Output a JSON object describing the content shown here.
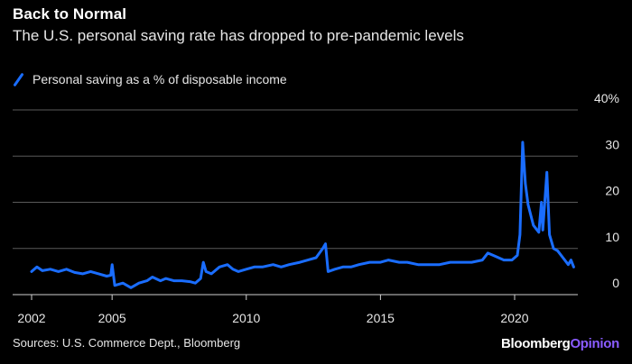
{
  "header": {
    "title": "Back to Normal",
    "subtitle": "The U.S. personal saving rate has dropped to pre-pandemic levels"
  },
  "footer": {
    "source": "Sources: U.S. Commerce Dept., Bloomberg",
    "brand_part1": "Bloomberg",
    "brand_part2": "Opinion"
  },
  "colors": {
    "series": "#1a6dff",
    "grid": "#5a5a5a",
    "brand_accent": "#8a5cff"
  },
  "chart_data": {
    "type": "line",
    "title": "Back to Normal",
    "subtitle": "The U.S. personal saving rate has dropped to pre-pandemic levels",
    "xlabel": "",
    "ylabel": "",
    "xlim": [
      2002,
      2022.3
    ],
    "ylim": [
      0,
      40
    ],
    "x_ticks": [
      2002,
      2005,
      2010,
      2015,
      2020
    ],
    "y_ticks": [
      0,
      10,
      20,
      30,
      40
    ],
    "y_tick_labels": [
      "0",
      "10",
      "20",
      "30",
      "40%"
    ],
    "grid": "horizontal",
    "legend": "top-left",
    "series": [
      {
        "name": "Personal saving as a % of disposable income",
        "points": [
          [
            2002.0,
            5.0
          ],
          [
            2002.2,
            6.0
          ],
          [
            2002.4,
            5.2
          ],
          [
            2002.7,
            5.5
          ],
          [
            2003.0,
            5.0
          ],
          [
            2003.3,
            5.5
          ],
          [
            2003.6,
            4.8
          ],
          [
            2003.9,
            4.5
          ],
          [
            2004.2,
            5.0
          ],
          [
            2004.5,
            4.5
          ],
          [
            2004.8,
            4.0
          ],
          [
            2004.95,
            4.2
          ],
          [
            2005.0,
            6.5
          ],
          [
            2005.1,
            2.0
          ],
          [
            2005.4,
            2.5
          ],
          [
            2005.7,
            1.5
          ],
          [
            2006.0,
            2.5
          ],
          [
            2006.3,
            3.0
          ],
          [
            2006.5,
            3.8
          ],
          [
            2006.8,
            3.0
          ],
          [
            2007.0,
            3.5
          ],
          [
            2007.3,
            3.0
          ],
          [
            2007.6,
            3.0
          ],
          [
            2007.9,
            2.8
          ],
          [
            2008.1,
            2.5
          ],
          [
            2008.3,
            3.5
          ],
          [
            2008.4,
            7.0
          ],
          [
            2008.5,
            5.0
          ],
          [
            2008.7,
            4.5
          ],
          [
            2009.0,
            6.0
          ],
          [
            2009.3,
            6.5
          ],
          [
            2009.5,
            5.5
          ],
          [
            2009.7,
            5.0
          ],
          [
            2010.0,
            5.5
          ],
          [
            2010.3,
            6.0
          ],
          [
            2010.6,
            6.0
          ],
          [
            2011.0,
            6.5
          ],
          [
            2011.3,
            6.0
          ],
          [
            2011.6,
            6.5
          ],
          [
            2012.0,
            7.0
          ],
          [
            2012.3,
            7.5
          ],
          [
            2012.6,
            8.0
          ],
          [
            2012.85,
            10.0
          ],
          [
            2012.95,
            11.0
          ],
          [
            2013.05,
            5.0
          ],
          [
            2013.3,
            5.5
          ],
          [
            2013.6,
            6.0
          ],
          [
            2013.9,
            6.0
          ],
          [
            2014.2,
            6.5
          ],
          [
            2014.6,
            7.0
          ],
          [
            2015.0,
            7.0
          ],
          [
            2015.3,
            7.5
          ],
          [
            2015.7,
            7.0
          ],
          [
            2016.0,
            7.0
          ],
          [
            2016.4,
            6.5
          ],
          [
            2016.8,
            6.5
          ],
          [
            2017.2,
            6.5
          ],
          [
            2017.6,
            7.0
          ],
          [
            2018.0,
            7.0
          ],
          [
            2018.4,
            7.0
          ],
          [
            2018.8,
            7.5
          ],
          [
            2019.0,
            9.0
          ],
          [
            2019.2,
            8.5
          ],
          [
            2019.6,
            7.5
          ],
          [
            2019.9,
            7.5
          ],
          [
            2020.1,
            8.5
          ],
          [
            2020.2,
            13.0
          ],
          [
            2020.3,
            33.0
          ],
          [
            2020.4,
            24.0
          ],
          [
            2020.5,
            19.5
          ],
          [
            2020.7,
            15.0
          ],
          [
            2020.9,
            13.5
          ],
          [
            2021.0,
            20.0
          ],
          [
            2021.05,
            14.0
          ],
          [
            2021.2,
            26.5
          ],
          [
            2021.3,
            13.0
          ],
          [
            2021.45,
            10.0
          ],
          [
            2021.6,
            9.5
          ],
          [
            2021.8,
            8.0
          ],
          [
            2022.0,
            6.5
          ],
          [
            2022.1,
            7.5
          ],
          [
            2022.2,
            6.0
          ]
        ]
      }
    ]
  }
}
